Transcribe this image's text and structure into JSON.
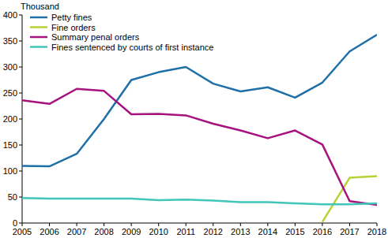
{
  "chart_data": {
    "type": "line",
    "y_label": "Thousand",
    "x": [
      2005,
      2006,
      2007,
      2008,
      2009,
      2010,
      2011,
      2012,
      2013,
      2014,
      2015,
      2016,
      2017,
      2018
    ],
    "xlim": [
      2005,
      2018
    ],
    "xticks": [
      2005,
      2006,
      2007,
      2008,
      2009,
      2010,
      2011,
      2012,
      2013,
      2014,
      2015,
      2016,
      2017,
      2018
    ],
    "ylim": [
      0,
      400
    ],
    "yticks": [
      0,
      50,
      100,
      150,
      200,
      250,
      300,
      350,
      400
    ],
    "grid": false,
    "legend": "upper left",
    "series": [
      {
        "name": "Petty fines",
        "color": "#1f6fa8",
        "values": [
          110,
          109,
          133,
          200,
          275,
          290,
          300,
          268,
          253,
          261,
          241,
          270,
          330,
          362
        ]
      },
      {
        "name": "Fine orders",
        "color": "#b5d334",
        "values": [
          null,
          null,
          null,
          null,
          null,
          null,
          null,
          null,
          null,
          null,
          null,
          2,
          87,
          90
        ]
      },
      {
        "name": "Summary penal orders",
        "color": "#a6127e",
        "values": [
          236,
          229,
          258,
          254,
          209,
          210,
          207,
          191,
          178,
          163,
          178,
          151,
          42,
          35
        ]
      },
      {
        "name": "Fines sentenced by courts of first instance",
        "color": "#41c6b9",
        "values": [
          48,
          47,
          47,
          47,
          47,
          44,
          45,
          43,
          40,
          40,
          38,
          36,
          36,
          38
        ]
      }
    ]
  }
}
